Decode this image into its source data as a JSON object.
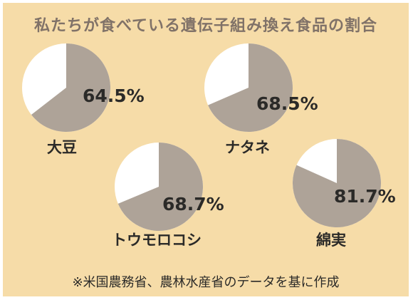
{
  "chart_data": {
    "type": "pie",
    "title": "私たちが食べている遺伝子組み換え食品の割合",
    "note": "※米国農務省、農林水産省のデータを基に作成",
    "colors": {
      "gm": "#aea398",
      "non_gm": "#ffffff"
    },
    "items": [
      {
        "name": "大豆",
        "value": 64.5,
        "label": "64.5%"
      },
      {
        "name": "ナタネ",
        "value": 68.5,
        "label": "68.5%"
      },
      {
        "name": "トウモロコシ",
        "value": 68.7,
        "label": "68.7%"
      },
      {
        "name": "綿実",
        "value": 81.7,
        "label": "81.7%"
      }
    ]
  }
}
